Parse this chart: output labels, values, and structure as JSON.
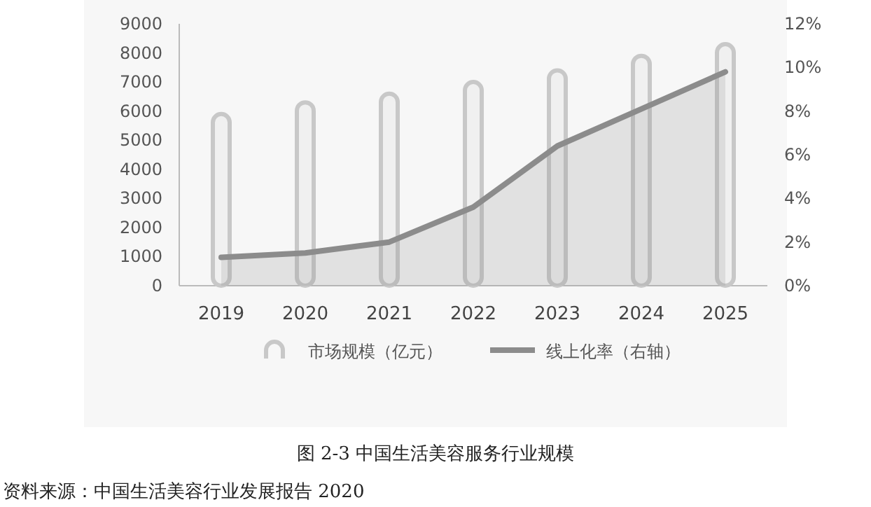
{
  "chart_data": {
    "type": "bar",
    "title": "图 2-3 中国生活美容服务行业规模",
    "categories": [
      "2019",
      "2020",
      "2021",
      "2022",
      "2023",
      "2024",
      "2025"
    ],
    "series": [
      {
        "name": "市场规模（亿元）",
        "color": "#c8c8c8",
        "values": [
          5900,
          6300,
          6600,
          7000,
          7400,
          7900,
          8300
        ]
      },
      {
        "name": "线上化率（右轴）",
        "type": "area",
        "axis": "y2",
        "color": "#8c8c8c",
        "values": [
          1.3,
          1.5,
          2.0,
          3.6,
          6.4,
          8.1,
          9.8
        ]
      }
    ],
    "ylim": [
      0,
      9000
    ],
    "yticks": [
      0,
      1000,
      2000,
      3000,
      4000,
      5000,
      6000,
      7000,
      8000,
      9000
    ],
    "y2lim": [
      0,
      12
    ],
    "y2ticks": [
      {
        "value": 0,
        "label": "0%"
      },
      {
        "value": 2,
        "label": "2%"
      },
      {
        "value": 4,
        "label": "4%"
      },
      {
        "value": 6,
        "label": "6%"
      },
      {
        "value": 8,
        "label": "8%"
      },
      {
        "value": 10,
        "label": "10%"
      },
      {
        "value": 12,
        "label": "12%"
      }
    ],
    "legend": "bottom",
    "annotations": [
      "资料来源：中国生活美容行业发展报告 2020"
    ]
  }
}
